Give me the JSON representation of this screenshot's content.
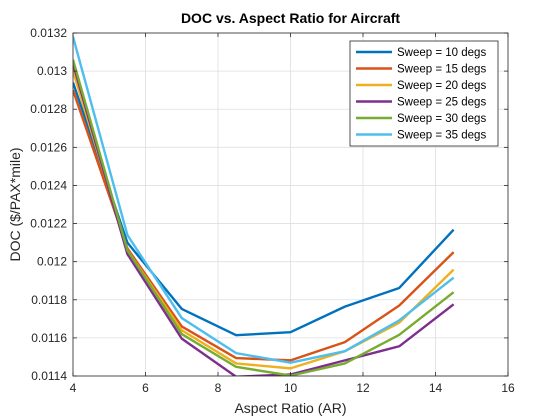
{
  "chart_data": {
    "type": "line",
    "title": "DOC vs. Aspect Ratio for Aircraft",
    "xlabel": "Aspect Ratio (AR)",
    "ylabel": "DOC ($/PAX*mile)",
    "xlim": [
      4,
      16
    ],
    "ylim": [
      0.0114,
      0.0132
    ],
    "xticks": [
      4,
      6,
      8,
      10,
      12,
      14,
      16
    ],
    "xtick_labels": [
      "4",
      "6",
      "8",
      "10",
      "12",
      "14",
      "16"
    ],
    "yticks": [
      0.0114,
      0.0116,
      0.0118,
      0.012,
      0.0122,
      0.0124,
      0.0126,
      0.0128,
      0.013,
      0.0132
    ],
    "ytick_labels": [
      "0.0114",
      "0.0116",
      "0.0118",
      "0.012",
      "0.0122",
      "0.0124",
      "0.0126",
      "0.0128",
      "0.013",
      "0.0132"
    ],
    "grid": true,
    "legend_position": "top-right",
    "x": [
      4,
      5.5,
      7,
      8.5,
      10,
      11.5,
      13,
      14.5
    ],
    "series": [
      {
        "name": "Sweep = 10 degs",
        "color": "#0072BD",
        "values": [
          0.01294,
          0.0121,
          0.011752,
          0.011614,
          0.01163,
          0.011764,
          0.011862,
          0.012168
        ]
      },
      {
        "name": "Sweep = 15 degs",
        "color": "#D95319",
        "values": [
          0.0129,
          0.01207,
          0.01166,
          0.011494,
          0.011482,
          0.011578,
          0.01177,
          0.01205
        ]
      },
      {
        "name": "Sweep = 20 degs",
        "color": "#EDB120",
        "values": [
          0.013,
          0.01206,
          0.01164,
          0.011466,
          0.01144,
          0.01153,
          0.01168,
          0.011958
        ]
      },
      {
        "name": "Sweep = 25 degs",
        "color": "#7E2F8E",
        "values": [
          0.01304,
          0.01204,
          0.011596,
          0.011396,
          0.011408,
          0.011482,
          0.011556,
          0.011776
        ]
      },
      {
        "name": "Sweep = 30 degs",
        "color": "#77AC30",
        "values": [
          0.01306,
          0.01206,
          0.01162,
          0.011448,
          0.011402,
          0.011466,
          0.011616,
          0.01184
        ]
      },
      {
        "name": "Sweep = 35 degs",
        "color": "#4DBEEE",
        "values": [
          0.01318,
          0.01214,
          0.011704,
          0.01152,
          0.01147,
          0.01153,
          0.011692,
          0.011916
        ]
      }
    ]
  }
}
